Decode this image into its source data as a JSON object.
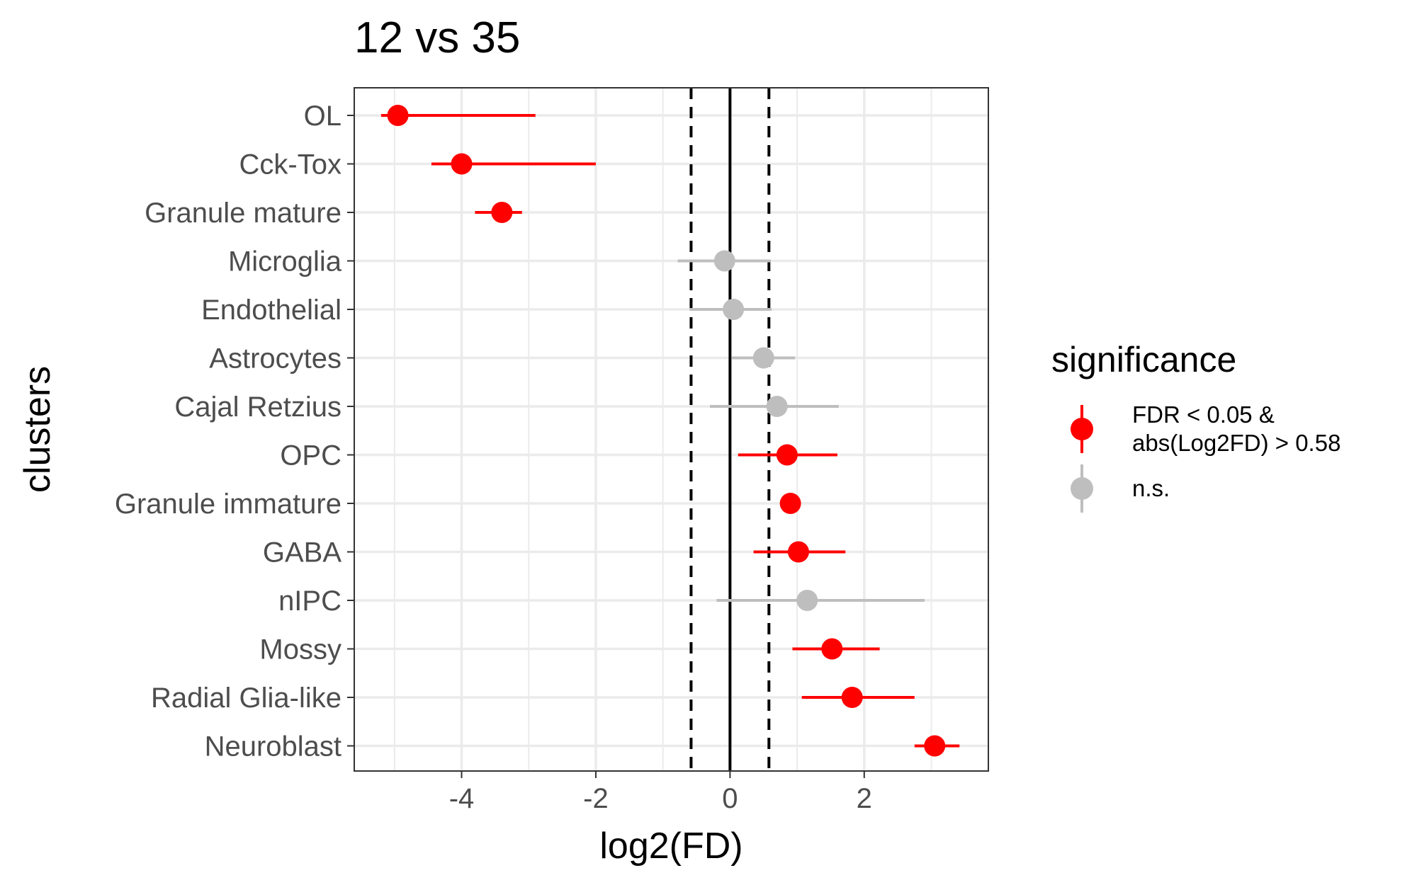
{
  "chart_data": {
    "type": "scatter",
    "title": "12 vs 35",
    "xlabel": "log2(FD)",
    "ylabel": "clusters",
    "xlim": [
      -5.6,
      3.85
    ],
    "xticks": [
      -4,
      -2,
      0,
      2
    ],
    "xtick_labels": [
      "-4",
      "-2",
      "0",
      "2"
    ],
    "reference_lines": [
      {
        "x": 0,
        "style": "solid"
      },
      {
        "x": -0.58,
        "style": "dashed"
      },
      {
        "x": 0.58,
        "style": "dashed"
      }
    ],
    "grid": true,
    "legend": {
      "title": "significance",
      "position": "right",
      "entries": [
        {
          "key": "sig",
          "label_lines": [
            "FDR < 0.05 &",
            "abs(Log2FD) > 0.58"
          ],
          "color": "#ff0000"
        },
        {
          "key": "ns",
          "label_lines": [
            "n.s."
          ],
          "color": "#bebebe"
        }
      ]
    },
    "points": [
      {
        "cluster": "OL",
        "x": -4.95,
        "low": -5.2,
        "high": -2.9,
        "group": "sig"
      },
      {
        "cluster": "Cck-Tox",
        "x": -4.0,
        "low": -4.45,
        "high": -2.0,
        "group": "sig"
      },
      {
        "cluster": "Granule mature",
        "x": -3.4,
        "low": -3.8,
        "high": -3.1,
        "group": "sig"
      },
      {
        "cluster": "Microglia",
        "x": -0.08,
        "low": -0.78,
        "high": 0.6,
        "group": "ns"
      },
      {
        "cluster": "Endothelial",
        "x": 0.05,
        "low": -0.6,
        "high": 0.62,
        "group": "ns"
      },
      {
        "cluster": "Astrocytes",
        "x": 0.5,
        "low": 0.02,
        "high": 0.97,
        "group": "ns"
      },
      {
        "cluster": "Cajal Retzius",
        "x": 0.7,
        "low": -0.3,
        "high": 1.62,
        "group": "ns"
      },
      {
        "cluster": "OPC",
        "x": 0.85,
        "low": 0.12,
        "high": 1.6,
        "group": "sig"
      },
      {
        "cluster": "Granule immature",
        "x": 0.9,
        "low": 0.8,
        "high": 1.0,
        "group": "sig"
      },
      {
        "cluster": "GABA",
        "x": 1.02,
        "low": 0.35,
        "high": 1.72,
        "group": "sig"
      },
      {
        "cluster": "nIPC",
        "x": 1.15,
        "low": -0.2,
        "high": 2.9,
        "group": "ns"
      },
      {
        "cluster": "Mossy",
        "x": 1.52,
        "low": 0.93,
        "high": 2.23,
        "group": "sig"
      },
      {
        "cluster": "Radial Glia-like",
        "x": 1.82,
        "low": 1.07,
        "high": 2.75,
        "group": "sig"
      },
      {
        "cluster": "Neuroblast",
        "x": 3.05,
        "low": 2.75,
        "high": 3.42,
        "group": "sig"
      }
    ]
  }
}
